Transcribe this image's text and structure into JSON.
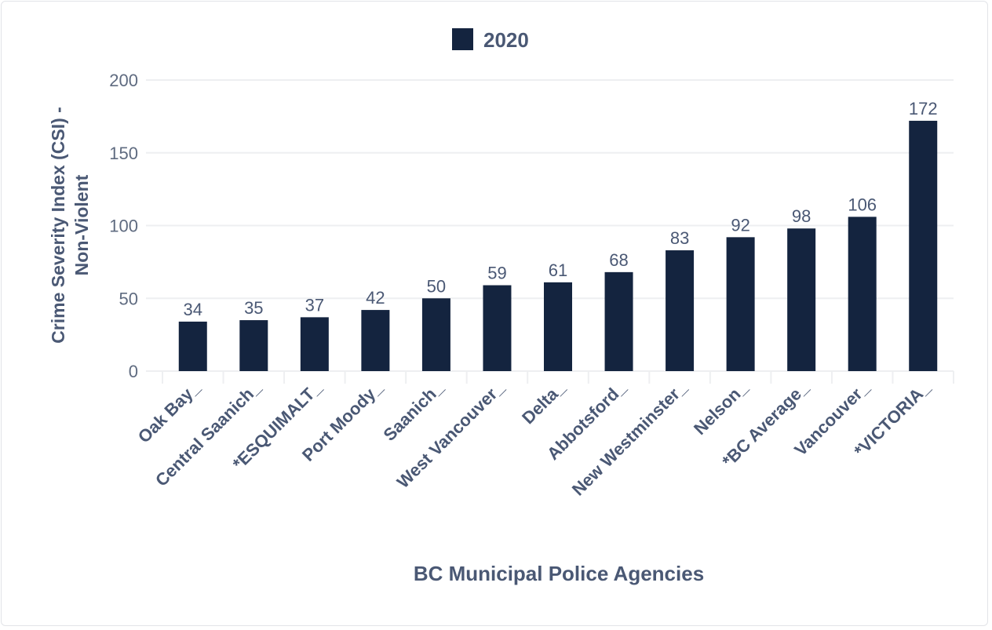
{
  "chart_data": {
    "type": "bar",
    "categories": [
      "Oak Bay_",
      "Central Saanich_",
      "*ESQUIMALT_",
      "Port Moody_",
      "Saanich_",
      "West Vancouver_",
      "Delta_",
      "Abbotsford_",
      "New Westminster_",
      "Nelson_",
      "*BC Average_",
      "Vancouver_",
      "*VICTORIA_"
    ],
    "series": [
      {
        "name": "2020",
        "values": [
          34,
          35,
          37,
          42,
          50,
          59,
          61,
          68,
          83,
          92,
          98,
          106,
          172
        ],
        "color": "#14243f"
      }
    ],
    "xlabel": "BC Municipal Police Agencies",
    "ylabel_lines": [
      "Crime Severity Index (CSI) -",
      "Non-Violent"
    ],
    "ylim": [
      0,
      200
    ],
    "yticks": [
      0,
      50,
      100,
      150,
      200
    ],
    "grid": true,
    "legend_position": "top-center"
  }
}
